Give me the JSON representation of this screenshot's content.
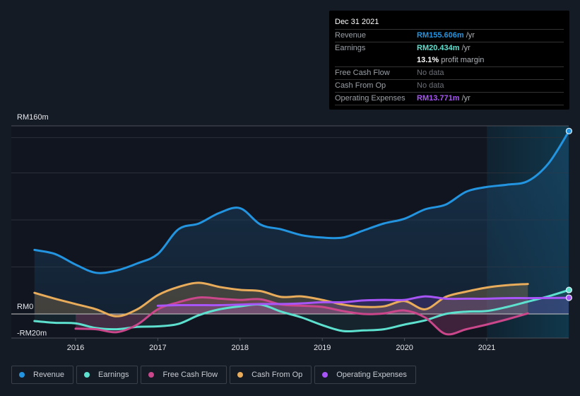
{
  "tooltip": {
    "date": "Dec 31 2021",
    "rows": [
      {
        "label": "Revenue",
        "value": "RM155.606m",
        "unit": " /yr",
        "color": "#2394df"
      },
      {
        "label": "Earnings",
        "value": "RM20.434m",
        "unit": " /yr",
        "color": "#5ee0cf"
      },
      {
        "label": "",
        "value": "13.1%",
        "unit": " profit margin",
        "color": "#ffffff"
      },
      {
        "label": "Free Cash Flow",
        "value": "No data",
        "unit": "",
        "color": "#6c7178"
      },
      {
        "label": "Cash From Op",
        "value": "No data",
        "unit": "",
        "color": "#6c7178"
      },
      {
        "label": "Operating Expenses",
        "value": "RM13.771m",
        "unit": " /yr",
        "color": "#a855f7"
      }
    ]
  },
  "legend": [
    {
      "label": "Revenue",
      "color": "#2394df"
    },
    {
      "label": "Earnings",
      "color": "#5ee0cf"
    },
    {
      "label": "Free Cash Flow",
      "color": "#c9478a"
    },
    {
      "label": "Cash From Op",
      "color": "#e8ac5a"
    },
    {
      "label": "Operating Expenses",
      "color": "#a855f7"
    }
  ],
  "chart_data": {
    "type": "area",
    "title": "",
    "xlabel": "",
    "ylabel": "",
    "currency": "RM",
    "ylim": [
      -20,
      160
    ],
    "xlim": [
      2015.5,
      2022.0
    ],
    "y_tick_labels": [
      {
        "value": 160,
        "label": "RM160m"
      },
      {
        "value": 0,
        "label": "RM0"
      },
      {
        "value": -20,
        "label": "-RM20m"
      }
    ],
    "x_tick_labels": [
      {
        "value": 2016,
        "label": "2016"
      },
      {
        "value": 2017,
        "label": "2017"
      },
      {
        "value": 2018,
        "label": "2018"
      },
      {
        "value": 2019,
        "label": "2019"
      },
      {
        "value": 2020,
        "label": "2020"
      },
      {
        "value": 2021,
        "label": "2021"
      }
    ],
    "forecast_start": 2021.0,
    "series": [
      {
        "name": "Revenue",
        "color": "#2394df",
        "points": [
          [
            2015.5,
            54.5
          ],
          [
            2015.75,
            51
          ],
          [
            2016.0,
            42
          ],
          [
            2016.25,
            35
          ],
          [
            2016.5,
            37
          ],
          [
            2016.75,
            43
          ],
          [
            2017.0,
            51
          ],
          [
            2017.25,
            72
          ],
          [
            2017.5,
            77
          ],
          [
            2017.75,
            86
          ],
          [
            2018.0,
            90
          ],
          [
            2018.25,
            76
          ],
          [
            2018.5,
            72
          ],
          [
            2018.75,
            67
          ],
          [
            2019.0,
            65
          ],
          [
            2019.25,
            65
          ],
          [
            2019.5,
            71
          ],
          [
            2019.75,
            77
          ],
          [
            2020.0,
            81
          ],
          [
            2020.25,
            89
          ],
          [
            2020.5,
            93
          ],
          [
            2020.75,
            104
          ],
          [
            2021.0,
            108
          ],
          [
            2021.25,
            110
          ],
          [
            2021.5,
            113
          ],
          [
            2021.75,
            128
          ],
          [
            2022.0,
            155.6
          ]
        ]
      },
      {
        "name": "Earnings",
        "color": "#5ee0cf",
        "points": [
          [
            2015.5,
            -6
          ],
          [
            2015.75,
            -7.5
          ],
          [
            2016.0,
            -8
          ],
          [
            2016.25,
            -12
          ],
          [
            2016.5,
            -13
          ],
          [
            2016.75,
            -11
          ],
          [
            2017.0,
            -10.5
          ],
          [
            2017.25,
            -8.5
          ],
          [
            2017.5,
            -1
          ],
          [
            2017.75,
            4
          ],
          [
            2018.0,
            6.5
          ],
          [
            2018.25,
            8
          ],
          [
            2018.5,
            2
          ],
          [
            2018.75,
            -3
          ],
          [
            2019.0,
            -9.5
          ],
          [
            2019.25,
            -14.5
          ],
          [
            2019.5,
            -14
          ],
          [
            2019.75,
            -13
          ],
          [
            2020.0,
            -9
          ],
          [
            2020.25,
            -5.5
          ],
          [
            2020.5,
            0
          ],
          [
            2020.75,
            2
          ],
          [
            2021.0,
            2.5
          ],
          [
            2021.25,
            6
          ],
          [
            2021.5,
            10.5
          ],
          [
            2021.75,
            15
          ],
          [
            2022.0,
            20.4
          ]
        ]
      },
      {
        "name": "Free Cash Flow",
        "color": "#c9478a",
        "points": [
          [
            2016.0,
            -12.5
          ],
          [
            2016.25,
            -13
          ],
          [
            2016.5,
            -15.5
          ],
          [
            2016.75,
            -9
          ],
          [
            2017.0,
            4
          ],
          [
            2017.25,
            10
          ],
          [
            2017.5,
            14
          ],
          [
            2017.75,
            13
          ],
          [
            2018.0,
            12
          ],
          [
            2018.25,
            12.5
          ],
          [
            2018.5,
            8
          ],
          [
            2018.75,
            7
          ],
          [
            2019.0,
            6
          ],
          [
            2019.25,
            2.5
          ],
          [
            2019.5,
            0
          ],
          [
            2019.75,
            0.5
          ],
          [
            2020.0,
            3
          ],
          [
            2020.25,
            -3
          ],
          [
            2020.5,
            -17
          ],
          [
            2020.75,
            -13
          ],
          [
            2021.0,
            -9
          ],
          [
            2021.25,
            -4.5
          ],
          [
            2021.5,
            0.5
          ]
        ]
      },
      {
        "name": "Cash From Op",
        "color": "#e8ac5a",
        "points": [
          [
            2015.5,
            18
          ],
          [
            2015.75,
            13
          ],
          [
            2016.0,
            8.5
          ],
          [
            2016.25,
            4
          ],
          [
            2016.5,
            -2
          ],
          [
            2016.75,
            4
          ],
          [
            2017.0,
            16
          ],
          [
            2017.25,
            23
          ],
          [
            2017.5,
            26.5
          ],
          [
            2017.75,
            23
          ],
          [
            2018.0,
            20.5
          ],
          [
            2018.25,
            19.5
          ],
          [
            2018.5,
            14.5
          ],
          [
            2018.75,
            15
          ],
          [
            2019.0,
            12
          ],
          [
            2019.25,
            8
          ],
          [
            2019.5,
            6
          ],
          [
            2019.75,
            6.5
          ],
          [
            2020.0,
            11
          ],
          [
            2020.25,
            4
          ],
          [
            2020.5,
            14.5
          ],
          [
            2020.75,
            19
          ],
          [
            2021.0,
            22.5
          ],
          [
            2021.25,
            24.5
          ],
          [
            2021.5,
            25.5
          ]
        ]
      },
      {
        "name": "Operating Expenses",
        "color": "#a855f7",
        "points": [
          [
            2017.0,
            7
          ],
          [
            2017.25,
            7.5
          ],
          [
            2017.5,
            7.5
          ],
          [
            2017.75,
            7.5
          ],
          [
            2018.0,
            8
          ],
          [
            2018.25,
            8.5
          ],
          [
            2018.5,
            8.5
          ],
          [
            2018.75,
            9
          ],
          [
            2019.0,
            10
          ],
          [
            2019.25,
            10
          ],
          [
            2019.5,
            11.5
          ],
          [
            2019.75,
            12
          ],
          [
            2020.0,
            12
          ],
          [
            2020.25,
            15
          ],
          [
            2020.5,
            13
          ],
          [
            2020.75,
            13
          ],
          [
            2021.0,
            13
          ],
          [
            2021.25,
            13.5
          ],
          [
            2021.5,
            13.5
          ],
          [
            2021.75,
            13.6
          ],
          [
            2022.0,
            13.8
          ]
        ]
      }
    ]
  }
}
